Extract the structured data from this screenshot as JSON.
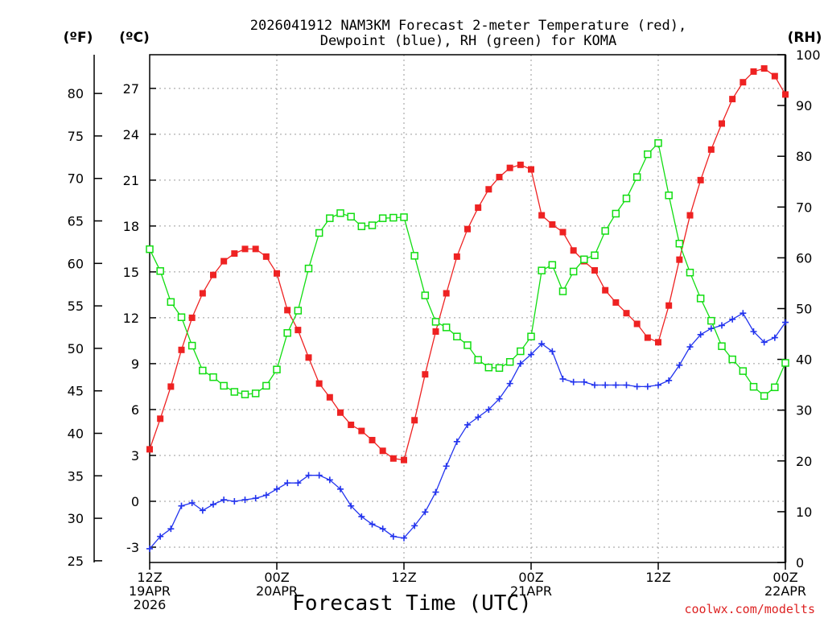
{
  "chart_data": {
    "type": "line",
    "title": [
      "2026041912 NAM3KM Forecast 2-meter Temperature (red),",
      "Dewpoint (blue), RH (green) for KOMA"
    ],
    "xlabel": "Forecast Time (UTC)",
    "credit": "coolwx.com/modelts",
    "unit_labels": {
      "fahrenheit": "(ºF)",
      "celsius": "(ºC)",
      "rh": "(RH)"
    },
    "hours": 60,
    "x_ticks": [
      {
        "hour": 0,
        "lines": [
          "12Z",
          "19APR",
          "2026"
        ]
      },
      {
        "hour": 12,
        "lines": [
          "00Z",
          "20APR"
        ]
      },
      {
        "hour": 24,
        "lines": [
          "12Z"
        ]
      },
      {
        "hour": 36,
        "lines": [
          "00Z",
          "21APR"
        ]
      },
      {
        "hour": 48,
        "lines": [
          "12Z"
        ]
      },
      {
        "hour": 60,
        "lines": [
          "00Z",
          "22APR"
        ]
      }
    ],
    "ylim_celsius": [
      -4,
      29.2
    ],
    "ylim_rh": [
      0,
      100
    ],
    "celsius_ticks": [
      -3,
      0,
      3,
      6,
      9,
      12,
      15,
      18,
      21,
      24,
      27
    ],
    "fahrenheit_ticks": [
      25,
      30,
      35,
      40,
      45,
      50,
      55,
      60,
      65,
      70,
      75,
      80
    ],
    "rh_ticks": [
      0,
      10,
      20,
      30,
      40,
      50,
      60,
      70,
      80,
      90,
      100
    ],
    "series": [
      {
        "name": "Temperature",
        "axis": "celsius",
        "color": "#ee2222",
        "marker": "filled-square",
        "values": [
          3.4,
          5.4,
          7.5,
          9.9,
          12.0,
          13.6,
          14.8,
          15.7,
          16.2,
          16.5,
          16.5,
          16.0,
          14.9,
          12.5,
          11.2,
          9.4,
          7.7,
          6.8,
          5.8,
          5.0,
          4.6,
          4.0,
          3.3,
          2.8,
          2.7,
          5.3,
          8.3,
          11.1,
          13.6,
          16.0,
          17.8,
          19.2,
          20.4,
          21.2,
          21.8,
          22.0,
          21.7,
          18.7,
          18.1,
          17.6,
          16.4,
          15.7,
          15.1,
          13.8,
          13.0,
          12.3,
          11.6,
          10.7,
          10.4,
          12.8,
          15.8,
          18.7,
          21.0,
          23.0,
          24.7,
          26.3,
          27.4,
          28.1,
          28.3,
          27.8,
          26.6
        ]
      },
      {
        "name": "Dewpoint",
        "axis": "celsius",
        "color": "#2233ee",
        "marker": "plus",
        "values": [
          -3.1,
          -2.3,
          -1.8,
          -0.3,
          -0.1,
          -0.6,
          -0.2,
          0.1,
          0.0,
          0.1,
          0.2,
          0.4,
          0.8,
          1.2,
          1.2,
          1.7,
          1.7,
          1.4,
          0.8,
          -0.3,
          -1.0,
          -1.5,
          -1.8,
          -2.3,
          -2.4,
          -1.6,
          -0.7,
          0.6,
          2.3,
          3.9,
          5.0,
          5.5,
          6.0,
          6.7,
          7.7,
          9.0,
          9.6,
          10.3,
          9.8,
          8.0,
          7.8,
          7.8,
          7.6,
          7.6,
          7.6,
          7.6,
          7.5,
          7.5,
          7.6,
          7.9,
          8.9,
          10.1,
          10.9,
          11.3,
          11.5,
          11.9,
          12.3,
          11.1,
          10.4,
          10.7,
          11.7
        ]
      },
      {
        "name": "RH",
        "axis": "rh",
        "color": "#11dd11",
        "marker": "open-square",
        "values": [
          61.7,
          57.4,
          51.3,
          48.3,
          42.7,
          37.8,
          36.5,
          34.8,
          33.6,
          33.1,
          33.3,
          34.8,
          38.0,
          45.2,
          49.6,
          57.9,
          64.9,
          67.8,
          68.8,
          68.1,
          66.2,
          66.4,
          67.8,
          67.9,
          68.0,
          60.4,
          52.6,
          47.4,
          46.3,
          44.5,
          42.8,
          39.9,
          38.4,
          38.3,
          39.5,
          41.6,
          44.5,
          57.5,
          58.6,
          53.4,
          57.3,
          59.7,
          60.5,
          65.3,
          68.7,
          71.7,
          75.9,
          80.4,
          82.6,
          72.3,
          62.8,
          57.1,
          52.0,
          47.6,
          42.6,
          40.0,
          37.7,
          34.6,
          32.8,
          34.5,
          39.3
        ]
      }
    ]
  }
}
